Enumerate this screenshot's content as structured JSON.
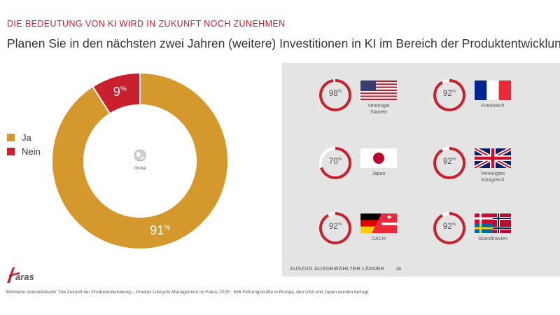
{
  "header": {
    "kicker": "DIE BEDEUTUNG VON KI WIRD IN ZUKUNFT NOCH ZUNEHMEN",
    "question": "Planen Sie in den nächsten zwei Jahren (weitere) Investitionen in KI im Bereich der Produktentwicklung?"
  },
  "chart_data": {
    "type": "pie",
    "variant": "donut",
    "center_label": "Global",
    "categories": [
      "Ja",
      "Nein"
    ],
    "values": [
      91,
      9
    ],
    "labels": [
      "91",
      "9"
    ],
    "unit": "%",
    "colors": [
      "#d4982c",
      "#c8202c"
    ],
    "legend_position": "left"
  },
  "legend": [
    {
      "label": "Ja",
      "color": "#d4982c"
    },
    {
      "label": "Nein",
      "color": "#c8202c"
    }
  ],
  "countries": [
    {
      "name_lines": [
        "Vereinigte",
        "Staaten"
      ],
      "value": 98,
      "value_label": "98",
      "flag": "flag-usa-icon"
    },
    {
      "name_lines": [
        "Frankreich"
      ],
      "value": 92,
      "value_label": "92",
      "flag": "flag-france-icon"
    },
    {
      "name_lines": [
        "Japan"
      ],
      "value": 70,
      "value_label": "70",
      "flag": "flag-japan-icon"
    },
    {
      "name_lines": [
        "Vereinigtes",
        "Königreich"
      ],
      "value": 92,
      "value_label": "92",
      "flag": "flag-uk-icon"
    },
    {
      "name_lines": [
        "DACH"
      ],
      "value": 92,
      "value_label": "92",
      "flag": "flag-dach-icon"
    },
    {
      "name_lines": [
        "Skandinavien"
      ],
      "value": 92,
      "value_label": "92",
      "flag": "flag-scandinavia-icon"
    }
  ],
  "percent_sign": "%",
  "panel": {
    "caption": "AUSZUG AUSGEWÄHLTER LÄNDER",
    "caption_right": "Ja"
  },
  "ring_colors": {
    "value": "#c8202c",
    "rest": "#ffffff"
  },
  "logo_text": "aras",
  "footnote": "Weltweite Industriestudie \"Die Zukunft der Produktentwicklung – Product Lifecycle Management im Fokus 2025\". 636 Führungskräfte in Europa, den USA und Japan wurden befragt."
}
